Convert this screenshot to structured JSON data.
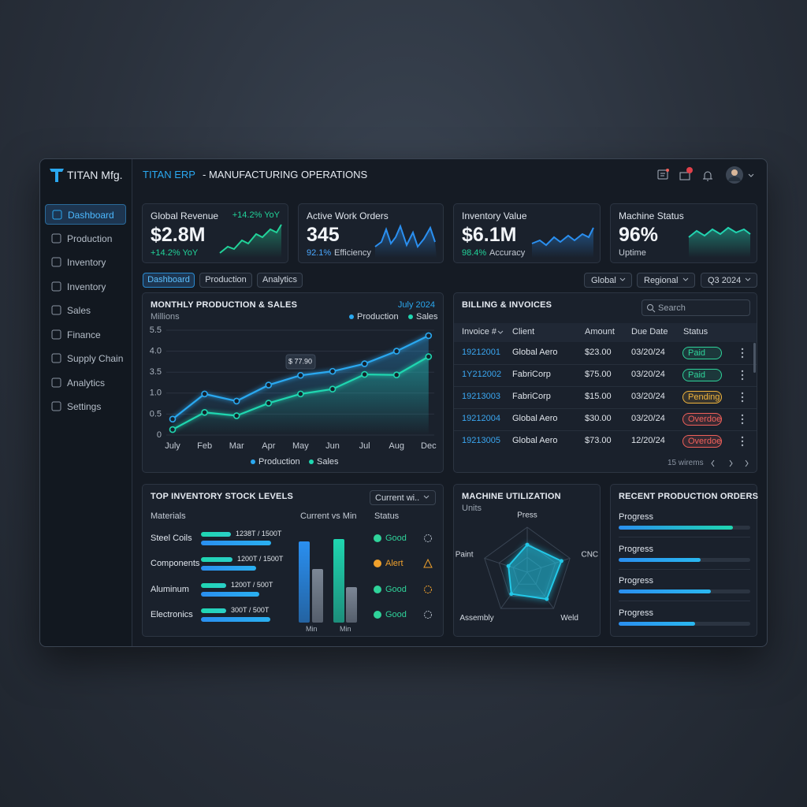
{
  "brand": "TITAN Mfg.",
  "header": {
    "title": "TITAN ERP",
    "subtitle": "- MANUFACTURING OPERATIONS"
  },
  "nav": [
    "Dashboard",
    "Production",
    "Inventory",
    "Inventory",
    "Sales",
    "Finance",
    "Supply Chain",
    "Analytics",
    "Settings"
  ],
  "kpis": [
    {
      "label": "Global Revenue",
      "badge": "+14.2% YoY",
      "value": "$2.8M",
      "highlight": "+14.2% YoY"
    },
    {
      "label": "Active Work Orders",
      "value": "345",
      "highlight": "92.1%",
      "note": "Efficiency"
    },
    {
      "label": "Inventory Value",
      "value": "$6.1M",
      "highlight": "98.4%",
      "note": "Accuracy"
    },
    {
      "label": "Machine Status",
      "value": "96%",
      "note": "Uptime"
    }
  ],
  "tabs": [
    "Dashboard",
    "Production",
    "Analytics"
  ],
  "filters": [
    "Global",
    "Regional",
    "Q3 2024"
  ],
  "production_chart": {
    "type": "line",
    "title": "MONTHLY PRODUCTION & SALES",
    "unit": "Millions",
    "period": "July 2024",
    "categories": [
      "July",
      "Feb",
      "Mar",
      "Apr",
      "May",
      "Jun",
      "Jul",
      "Aug",
      "Dec"
    ],
    "series": [
      {
        "name": "Production",
        "color": "#2aa8f0",
        "values": [
          0.38,
          0.98,
          0.81,
          1.96,
          3.12,
          3.52,
          3.7,
          4.0,
          5.11
        ]
      },
      {
        "name": "Sales",
        "color": "#1fd6b0",
        "values": [
          0.13,
          0.54,
          0.46,
          0.76,
          0.98,
          1.48,
          3.23,
          3.17,
          3.87
        ]
      }
    ],
    "ylim": [
      0,
      5.5
    ],
    "yticks": [
      0,
      0.5,
      {
        "value": 1,
        "label": "1.0"
      },
      3.5,
      {
        "value": 4,
        "label": "4.0"
      },
      5.5
    ],
    "grid": true,
    "annotation": "$ 77.90"
  },
  "billing": {
    "title": "BILLING & INVOICES",
    "search": "Search",
    "columns": [
      "Invoice #",
      "Client",
      "Amount",
      "Due Date",
      "Status"
    ],
    "rows": [
      [
        "19212001",
        "Global Aero",
        "$23.00",
        "03/20/24",
        "Paid"
      ],
      [
        "1Y212002",
        "FabriCorp",
        "$75.00",
        "03/20/24",
        "Paid"
      ],
      [
        "19213003",
        "FabriCorp",
        "$15.00",
        "03/20/24",
        "Pending"
      ],
      [
        "19212004",
        "Global Aero",
        "$30.00",
        "03/20/24",
        "Overdoe"
      ],
      [
        "19213005",
        "Global Aero",
        "$73.00",
        "12/20/24",
        "Overdoe"
      ]
    ],
    "status_colors": [
      "#2fd39a",
      "#2fd39a",
      "#f0b43c",
      "#f0605a",
      "#f0605a"
    ],
    "footer": "15 wirems"
  },
  "inventory": {
    "title": "TOP INVENTORY STOCK LEVELS",
    "filter": "Current wi..",
    "columns": [
      "Materials",
      "Current vs Min",
      "Status"
    ],
    "rows": [
      {
        "name": "Steel Coils",
        "level": "1238T / 1500T",
        "status": "Good"
      },
      {
        "name": "Components",
        "level": "1200T / 1500T",
        "status": "Alert"
      },
      {
        "name": "Aluminum",
        "level": "1200T / 500T",
        "status": "Good"
      },
      {
        "name": "Electronics",
        "level": "300T / 500T",
        "status": "Good"
      }
    ],
    "status_colors": [
      "#2fd39a",
      "#f0a12c",
      "#2fd39a",
      "#2fd39a"
    ],
    "bar_labels": [
      "Min",
      "Min"
    ]
  },
  "utilization": {
    "type": "radar",
    "title": "MACHINE UTILIZATION",
    "unit": "Units",
    "axes": [
      "Press",
      "CNC",
      "Weld",
      "Assembly",
      "Paint"
    ],
    "values": [
      61,
      80,
      74,
      60,
      44
    ],
    "rlim": [
      0,
      100
    ],
    "color": "#22c8e8"
  },
  "orders": {
    "title": "RECENT PRODUCTION ORDERS",
    "xlim": [
      0,
      100
    ],
    "items": [
      {
        "label": "Progress",
        "value": 87
      },
      {
        "label": "Progress",
        "value": 62
      },
      {
        "label": "Progress",
        "value": 70
      },
      {
        "label": "Progress",
        "value": 58
      }
    ]
  }
}
